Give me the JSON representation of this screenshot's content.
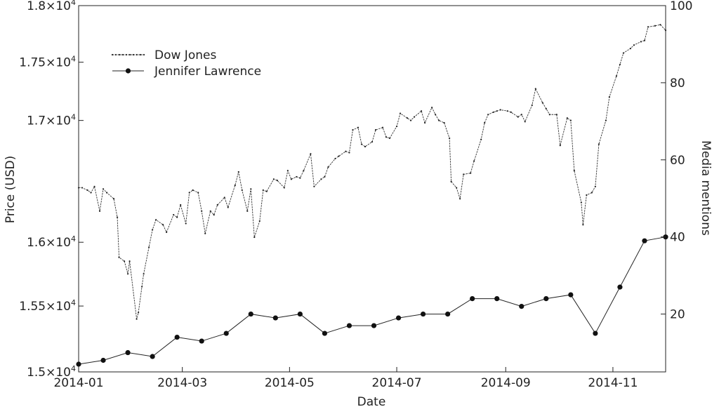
{
  "chart_data": {
    "type": "line",
    "xlabel": "Date",
    "ylabel_left": "Price (USD)",
    "ylabel_right": "Media mentions",
    "x_range": [
      "2014-01-01",
      "2014-12-01"
    ],
    "y_left_range": [
      15000,
      18000
    ],
    "y_left_ticks": [
      {
        "value": 15000,
        "mantissa": "1.5×10",
        "exp": "4"
      },
      {
        "value": 15500,
        "mantissa": "1.55×10",
        "exp": "4"
      },
      {
        "value": 16000,
        "mantissa": "1.6×10",
        "exp": "4"
      },
      {
        "value": 17000,
        "mantissa": "1.7×10",
        "exp": "4"
      },
      {
        "value": 17500,
        "mantissa": "1.75×10",
        "exp": "4"
      },
      {
        "value": 18000,
        "mantissa": "1.8×10",
        "exp": "4"
      }
    ],
    "y_right_range": [
      5,
      100
    ],
    "y_right_ticks": [
      20,
      40,
      60,
      80,
      100
    ],
    "x_ticks": [
      "2014-01",
      "2014-03",
      "2014-05",
      "2014-07",
      "2014-09",
      "2014-11"
    ],
    "legend_position": "top-left",
    "grid": false,
    "series": [
      {
        "name": "Dow Jones",
        "axis": "left",
        "style": "dashed-small-markers",
        "points": [
          [
            "2014-01-01",
            16440
          ],
          [
            "2014-01-03",
            16440
          ],
          [
            "2014-01-06",
            16420
          ],
          [
            "2014-01-08",
            16400
          ],
          [
            "2014-01-10",
            16450
          ],
          [
            "2014-01-13",
            16250
          ],
          [
            "2014-01-15",
            16430
          ],
          [
            "2014-01-17",
            16400
          ],
          [
            "2014-01-21",
            16350
          ],
          [
            "2014-01-23",
            16200
          ],
          [
            "2014-01-24",
            15880
          ],
          [
            "2014-01-27",
            15850
          ],
          [
            "2014-01-29",
            15750
          ],
          [
            "2014-01-30",
            15850
          ],
          [
            "2014-02-03",
            15400
          ],
          [
            "2014-02-04",
            15450
          ],
          [
            "2014-02-06",
            15650
          ],
          [
            "2014-02-07",
            15750
          ],
          [
            "2014-02-10",
            15960
          ],
          [
            "2014-02-12",
            16100
          ],
          [
            "2014-02-14",
            16180
          ],
          [
            "2014-02-18",
            16140
          ],
          [
            "2014-02-20",
            16080
          ],
          [
            "2014-02-24",
            16220
          ],
          [
            "2014-02-26",
            16200
          ],
          [
            "2014-02-28",
            16300
          ],
          [
            "2014-03-03",
            16150
          ],
          [
            "2014-03-05",
            16400
          ],
          [
            "2014-03-07",
            16420
          ],
          [
            "2014-03-10",
            16400
          ],
          [
            "2014-03-12",
            16250
          ],
          [
            "2014-03-14",
            16070
          ],
          [
            "2014-03-17",
            16250
          ],
          [
            "2014-03-19",
            16220
          ],
          [
            "2014-03-21",
            16300
          ],
          [
            "2014-03-25",
            16360
          ],
          [
            "2014-03-27",
            16280
          ],
          [
            "2014-03-31",
            16460
          ],
          [
            "2014-04-02",
            16570
          ],
          [
            "2014-04-04",
            16420
          ],
          [
            "2014-04-07",
            16250
          ],
          [
            "2014-04-09",
            16430
          ],
          [
            "2014-04-11",
            16040
          ],
          [
            "2014-04-14",
            16170
          ],
          [
            "2014-04-16",
            16420
          ],
          [
            "2014-04-18",
            16410
          ],
          [
            "2014-04-22",
            16510
          ],
          [
            "2014-04-24",
            16500
          ],
          [
            "2014-04-28",
            16440
          ],
          [
            "2014-04-30",
            16580
          ],
          [
            "2014-05-02",
            16510
          ],
          [
            "2014-05-05",
            16530
          ],
          [
            "2014-05-07",
            16520
          ],
          [
            "2014-05-09",
            16580
          ],
          [
            "2014-05-13",
            16720
          ],
          [
            "2014-05-15",
            16450
          ],
          [
            "2014-05-19",
            16510
          ],
          [
            "2014-05-21",
            16530
          ],
          [
            "2014-05-23",
            16610
          ],
          [
            "2014-05-27",
            16680
          ],
          [
            "2014-05-29",
            16700
          ],
          [
            "2014-06-02",
            16740
          ],
          [
            "2014-06-04",
            16730
          ],
          [
            "2014-06-06",
            16920
          ],
          [
            "2014-06-09",
            16940
          ],
          [
            "2014-06-11",
            16800
          ],
          [
            "2014-06-13",
            16780
          ],
          [
            "2014-06-17",
            16820
          ],
          [
            "2014-06-19",
            16920
          ],
          [
            "2014-06-23",
            16940
          ],
          [
            "2014-06-25",
            16860
          ],
          [
            "2014-06-27",
            16850
          ],
          [
            "2014-07-01",
            16950
          ],
          [
            "2014-07-03",
            17060
          ],
          [
            "2014-07-07",
            17020
          ],
          [
            "2014-07-09",
            17000
          ],
          [
            "2014-07-11",
            17030
          ],
          [
            "2014-07-15",
            17080
          ],
          [
            "2014-07-17",
            16980
          ],
          [
            "2014-07-21",
            17110
          ],
          [
            "2014-07-23",
            17050
          ],
          [
            "2014-07-25",
            17000
          ],
          [
            "2014-07-28",
            16980
          ],
          [
            "2014-07-31",
            16850
          ],
          [
            "2014-08-01",
            16490
          ],
          [
            "2014-08-04",
            16440
          ],
          [
            "2014-08-06",
            16350
          ],
          [
            "2014-08-08",
            16550
          ],
          [
            "2014-08-12",
            16560
          ],
          [
            "2014-08-14",
            16660
          ],
          [
            "2014-08-18",
            16840
          ],
          [
            "2014-08-20",
            16980
          ],
          [
            "2014-08-22",
            17050
          ],
          [
            "2014-08-25",
            17070
          ],
          [
            "2014-08-27",
            17080
          ],
          [
            "2014-08-29",
            17090
          ],
          [
            "2014-09-02",
            17080
          ],
          [
            "2014-09-04",
            17070
          ],
          [
            "2014-09-08",
            17030
          ],
          [
            "2014-09-10",
            17050
          ],
          [
            "2014-09-12",
            16990
          ],
          [
            "2014-09-16",
            17130
          ],
          [
            "2014-09-18",
            17270
          ],
          [
            "2014-09-22",
            17150
          ],
          [
            "2014-09-24",
            17100
          ],
          [
            "2014-09-26",
            17050
          ],
          [
            "2014-09-30",
            17050
          ],
          [
            "2014-10-02",
            16790
          ],
          [
            "2014-10-06",
            17020
          ],
          [
            "2014-10-08",
            17000
          ],
          [
            "2014-10-10",
            16580
          ],
          [
            "2014-10-14",
            16320
          ],
          [
            "2014-10-15",
            16140
          ],
          [
            "2014-10-17",
            16380
          ],
          [
            "2014-10-20",
            16400
          ],
          [
            "2014-10-22",
            16450
          ],
          [
            "2014-10-24",
            16800
          ],
          [
            "2014-10-28",
            17000
          ],
          [
            "2014-10-30",
            17200
          ],
          [
            "2014-11-03",
            17380
          ],
          [
            "2014-11-05",
            17480
          ],
          [
            "2014-11-07",
            17580
          ],
          [
            "2014-11-11",
            17620
          ],
          [
            "2014-11-13",
            17650
          ],
          [
            "2014-11-17",
            17680
          ],
          [
            "2014-11-19",
            17690
          ],
          [
            "2014-11-21",
            17810
          ],
          [
            "2014-11-25",
            17820
          ],
          [
            "2014-11-28",
            17830
          ],
          [
            "2014-12-01",
            17780
          ]
        ]
      },
      {
        "name": "Jennifer Lawrence",
        "axis": "right",
        "style": "solid-dot-markers",
        "points": [
          [
            "2014-01-01",
            7
          ],
          [
            "2014-01-15",
            8
          ],
          [
            "2014-01-29",
            10
          ],
          [
            "2014-02-12",
            9
          ],
          [
            "2014-02-26",
            14
          ],
          [
            "2014-03-12",
            13
          ],
          [
            "2014-03-26",
            15
          ],
          [
            "2014-04-09",
            20
          ],
          [
            "2014-04-23",
            19
          ],
          [
            "2014-05-07",
            20
          ],
          [
            "2014-05-21",
            15
          ],
          [
            "2014-06-04",
            17
          ],
          [
            "2014-06-18",
            17
          ],
          [
            "2014-07-02",
            19
          ],
          [
            "2014-07-16",
            20
          ],
          [
            "2014-07-30",
            20
          ],
          [
            "2014-08-13",
            24
          ],
          [
            "2014-08-27",
            24
          ],
          [
            "2014-09-10",
            22
          ],
          [
            "2014-09-24",
            24
          ],
          [
            "2014-10-08",
            25
          ],
          [
            "2014-10-22",
            15
          ],
          [
            "2014-11-05",
            27
          ],
          [
            "2014-11-19",
            39
          ],
          [
            "2014-12-03",
            40
          ]
        ]
      }
    ]
  }
}
